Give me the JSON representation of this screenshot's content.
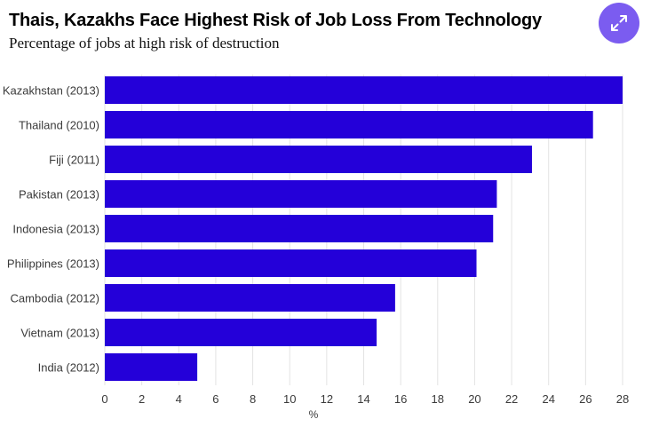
{
  "header": {
    "title": "Thais, Kazakhs Face Highest Risk of Job Loss From Technology",
    "subtitle": "Percentage of jobs at high risk of destruction"
  },
  "expand_button": {
    "icon": "expand-icon"
  },
  "colors": {
    "bar": "#2400d9",
    "grid": "#e3e3e3",
    "button": "#7b5cf0"
  },
  "chart_data": {
    "type": "bar",
    "orientation": "horizontal",
    "title": "Thais, Kazakhs Face Highest Risk of Job Loss From Technology",
    "subtitle": "Percentage of jobs at high risk of destruction",
    "categories": [
      "Kazakhstan (2013)",
      "Thailand (2010)",
      "Fiji (2011)",
      "Pakistan (2013)",
      "Indonesia (2013)",
      "Philippines (2013)",
      "Cambodia (2012)",
      "Vietnam (2013)",
      "India (2012)"
    ],
    "values": [
      28.0,
      26.4,
      23.1,
      21.2,
      21.0,
      20.1,
      15.7,
      14.7,
      5.0
    ],
    "xlabel": "%",
    "ylabel": "",
    "xlim": [
      0,
      28
    ],
    "xticks": [
      0,
      2,
      4,
      6,
      8,
      10,
      12,
      14,
      16,
      18,
      20,
      22,
      24,
      26,
      28
    ],
    "grid": true
  }
}
